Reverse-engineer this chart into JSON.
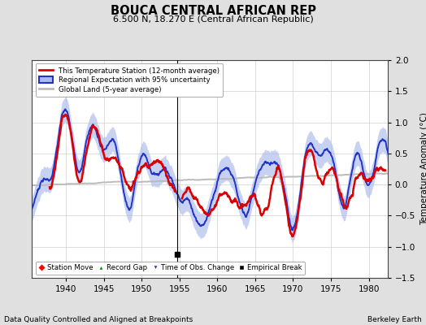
{
  "title": "BOUCA CENTRAL AFRICAN REP",
  "subtitle": "6.500 N, 18.270 E (Central African Republic)",
  "ylabel": "Temperature Anomaly (°C)",
  "footer_left": "Data Quality Controlled and Aligned at Breakpoints",
  "footer_right": "Berkeley Earth",
  "xlim": [
    1935.5,
    1982.5
  ],
  "ylim": [
    -1.5,
    2.0
  ],
  "yticks": [
    -1.5,
    -1.0,
    -0.5,
    0.0,
    0.5,
    1.0,
    1.5,
    2.0
  ],
  "xticks": [
    1940,
    1945,
    1950,
    1955,
    1960,
    1965,
    1970,
    1975,
    1980
  ],
  "bg_color": "#e0e0e0",
  "plot_bg_color": "#ffffff",
  "station_color": "#dd0000",
  "regional_color": "#2233cc",
  "regional_fill_color": "#aabbee",
  "global_color": "#bbbbbb",
  "empirical_break_x": 1954.7,
  "legend_entries": [
    "This Temperature Station (12-month average)",
    "Regional Expectation with 95% uncertainty",
    "Global Land (5-year average)"
  ],
  "legend_marker_entries": [
    "Station Move",
    "Record Gap",
    "Time of Obs. Change",
    "Empirical Break"
  ]
}
